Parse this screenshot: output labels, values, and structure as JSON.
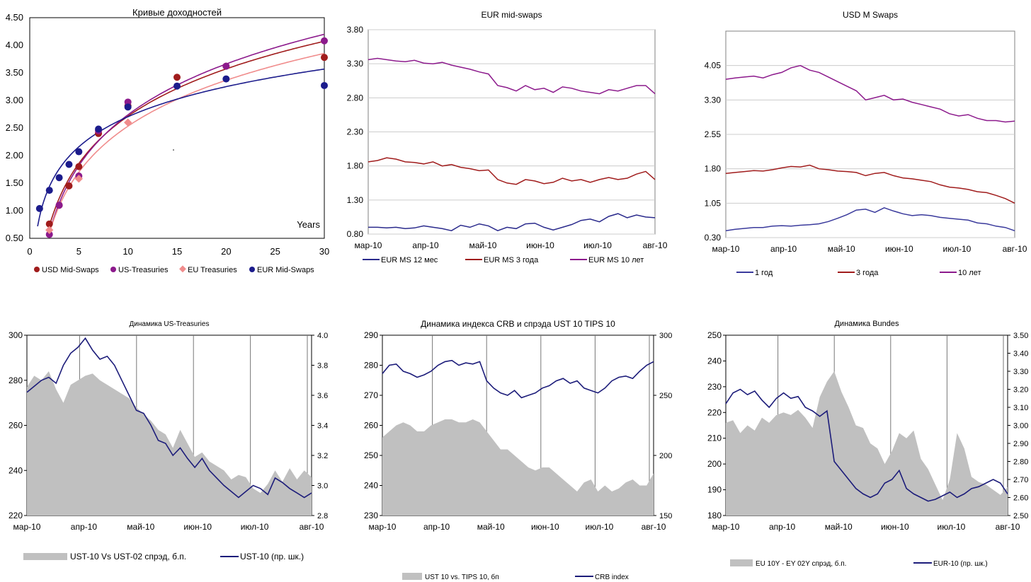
{
  "chart_data": [
    {
      "type": "scatter",
      "title": "Кривые доходностей",
      "xlabel": "Years",
      "xlim": [
        0,
        30
      ],
      "ylim": [
        0.5,
        4.5
      ],
      "xticks": [
        "0",
        "5",
        "10",
        "15",
        "20",
        "25",
        "30"
      ],
      "yticks": [
        "0.50",
        "1.00",
        "1.50",
        "2.00",
        "2.50",
        "3.00",
        "3.50",
        "4.00",
        "4.50"
      ],
      "series": [
        {
          "name": "USD Mid-Swaps",
          "color": "#a01c1c",
          "x": [
            2,
            3,
            4,
            5,
            7,
            10,
            15,
            20,
            30
          ],
          "y": [
            0.76,
            1.1,
            1.45,
            1.8,
            2.4,
            2.9,
            3.42,
            3.62,
            3.78
          ]
        },
        {
          "name": "US-Treasuries",
          "color": "#8c1a8c",
          "x": [
            2,
            3,
            5,
            7,
            10,
            20,
            30
          ],
          "y": [
            0.57,
            1.1,
            1.63,
            2.45,
            2.97,
            3.62,
            4.08
          ]
        },
        {
          "name": "EU Treasuries",
          "color": "#f08c8c",
          "x": [
            2,
            5,
            10
          ],
          "y": [
            0.65,
            1.58,
            2.6
          ]
        },
        {
          "name": "EUR Mid-Swaps",
          "color": "#1c1c8c",
          "x": [
            1,
            2,
            3,
            4,
            5,
            7,
            10,
            15,
            20,
            30
          ],
          "y": [
            1.04,
            1.37,
            1.6,
            1.84,
            2.07,
            2.48,
            2.88,
            3.26,
            3.39,
            3.27
          ]
        }
      ]
    },
    {
      "type": "line",
      "title": "EUR mid-swaps",
      "ylim": [
        0.8,
        3.8
      ],
      "yticks": [
        "0.80",
        "1.30",
        "1.80",
        "2.30",
        "2.80",
        "3.30",
        "3.80"
      ],
      "xticks": [
        "мар-10",
        "апр-10",
        "май-10",
        "июн-10",
        "июл-10",
        "авг-10"
      ],
      "series": [
        {
          "name": "EUR MS 12 мес",
          "color": "#2a2a8c",
          "values": [
            0.9,
            0.9,
            0.89,
            0.9,
            0.88,
            0.89,
            0.92,
            0.9,
            0.88,
            0.85,
            0.93,
            0.9,
            0.95,
            0.92,
            0.85,
            0.9,
            0.88,
            0.95,
            0.96,
            0.9,
            0.86,
            0.9,
            0.94,
            1.0,
            1.02,
            0.98,
            1.06,
            1.1,
            1.04,
            1.08,
            1.05,
            1.04
          ]
        },
        {
          "name": "EUR MS 3 года",
          "color": "#a01c1c",
          "values": [
            1.86,
            1.88,
            1.92,
            1.9,
            1.86,
            1.85,
            1.83,
            1.86,
            1.8,
            1.82,
            1.78,
            1.76,
            1.73,
            1.74,
            1.6,
            1.55,
            1.53,
            1.6,
            1.58,
            1.54,
            1.56,
            1.62,
            1.58,
            1.6,
            1.56,
            1.6,
            1.63,
            1.6,
            1.62,
            1.68,
            1.72,
            1.6
          ]
        },
        {
          "name": "EUR MS 10 лет",
          "color": "#8c1a8c",
          "values": [
            3.36,
            3.38,
            3.36,
            3.34,
            3.33,
            3.35,
            3.31,
            3.3,
            3.32,
            3.28,
            3.25,
            3.22,
            3.18,
            3.15,
            2.98,
            2.95,
            2.9,
            2.98,
            2.92,
            2.94,
            2.88,
            2.96,
            2.94,
            2.9,
            2.88,
            2.86,
            2.92,
            2.9,
            2.94,
            2.98,
            2.98,
            2.86
          ]
        }
      ]
    },
    {
      "type": "line",
      "title": "USD M Swaps",
      "ylim": [
        0.3,
        4.8
      ],
      "yticks": [
        "0.30",
        "1.05",
        "1.80",
        "2.55",
        "3.30",
        "4.05"
      ],
      "xticks": [
        "мар-10",
        "апр-10",
        "май-10",
        "июн-10",
        "июл-10",
        "авг-10"
      ],
      "series": [
        {
          "name": "1 год",
          "color": "#3a3a9c",
          "values": [
            0.45,
            0.48,
            0.5,
            0.52,
            0.52,
            0.55,
            0.56,
            0.55,
            0.57,
            0.58,
            0.6,
            0.65,
            0.72,
            0.8,
            0.9,
            0.92,
            0.85,
            0.95,
            0.88,
            0.82,
            0.78,
            0.8,
            0.78,
            0.74,
            0.72,
            0.7,
            0.68,
            0.62,
            0.6,
            0.55,
            0.52,
            0.45
          ]
        },
        {
          "name": "3 года",
          "color": "#a01c1c",
          "values": [
            1.7,
            1.72,
            1.74,
            1.76,
            1.75,
            1.78,
            1.82,
            1.85,
            1.84,
            1.88,
            1.8,
            1.78,
            1.75,
            1.74,
            1.72,
            1.65,
            1.7,
            1.72,
            1.65,
            1.6,
            1.58,
            1.55,
            1.52,
            1.45,
            1.4,
            1.38,
            1.35,
            1.3,
            1.28,
            1.22,
            1.15,
            1.05
          ]
        },
        {
          "name": "10 лет",
          "color": "#8c1a8c",
          "values": [
            3.75,
            3.78,
            3.8,
            3.82,
            3.78,
            3.85,
            3.9,
            4.0,
            4.05,
            3.95,
            3.9,
            3.8,
            3.7,
            3.6,
            3.5,
            3.3,
            3.35,
            3.4,
            3.3,
            3.32,
            3.25,
            3.2,
            3.15,
            3.1,
            3.0,
            2.95,
            2.98,
            2.9,
            2.85,
            2.85,
            2.82,
            2.84
          ]
        }
      ]
    },
    {
      "type": "area",
      "title": "Динамика US-Treasuries",
      "ylim": [
        220,
        300
      ],
      "yticks": [
        "220",
        "240",
        "260",
        "280",
        "300"
      ],
      "y2lim": [
        2.8,
        4.0
      ],
      "y2ticks": [
        "2.8",
        "3.0",
        "3.2",
        "3.4",
        "3.6",
        "3.8",
        "4.0"
      ],
      "xticks": [
        "мар-10",
        "апр-10",
        "май-10",
        "июн-10",
        "июл-10",
        "авг-10"
      ],
      "series": [
        {
          "name": "UST-10 Vs UST-02 спрэд, б.п.",
          "color": "#c0c0c0",
          "values": [
            277,
            282,
            280,
            284,
            276,
            270,
            278,
            280,
            282,
            283,
            280,
            278,
            276,
            274,
            272,
            268,
            265,
            262,
            258,
            256,
            250,
            258,
            252,
            246,
            248,
            244,
            242,
            240,
            236,
            238,
            237,
            232,
            230,
            234,
            240,
            235,
            241,
            236,
            240,
            237
          ]
        },
        {
          "name": "UST-10 (пр. шк.)",
          "color": "#1c1c7a",
          "values": [
            3.62,
            3.66,
            3.7,
            3.72,
            3.68,
            3.8,
            3.88,
            3.92,
            3.98,
            3.9,
            3.84,
            3.86,
            3.8,
            3.7,
            3.6,
            3.5,
            3.48,
            3.4,
            3.3,
            3.28,
            3.2,
            3.25,
            3.18,
            3.12,
            3.18,
            3.1,
            3.05,
            3.0,
            2.96,
            2.92,
            2.96,
            3.0,
            2.98,
            2.94,
            3.05,
            3.02,
            2.98,
            2.95,
            2.92,
            2.95
          ]
        }
      ]
    },
    {
      "type": "area",
      "title": "Динамика индекса CRB и спрэда UST 10 TIPS 10",
      "ylim": [
        230,
        290
      ],
      "yticks": [
        "230",
        "240",
        "250",
        "260",
        "270",
        "280",
        "290"
      ],
      "y2lim": [
        150,
        300
      ],
      "y2ticks": [
        "150",
        "200",
        "250",
        "300"
      ],
      "xticks": [
        "мар-10",
        "апр-10",
        "май-10",
        "июн-10",
        "июл-10",
        "авг-10"
      ],
      "series": [
        {
          "name": "UST 10 vs. TIPS 10, бп",
          "color": "#c0c0c0",
          "values": [
            256,
            258,
            260,
            261,
            260,
            258,
            258,
            260,
            261,
            262,
            262,
            261,
            261,
            262,
            261,
            258,
            255,
            252,
            252,
            250,
            248,
            246,
            245,
            246,
            246,
            244,
            242,
            240,
            238,
            241,
            242,
            238,
            240,
            238,
            239,
            241,
            242,
            240,
            240,
            244
          ]
        },
        {
          "name": "CRB index",
          "color": "#1c1c7a",
          "values": [
            268,
            275,
            276,
            270,
            268,
            265,
            267,
            270,
            275,
            278,
            279,
            275,
            277,
            276,
            278,
            262,
            256,
            252,
            250,
            254,
            248,
            250,
            252,
            256,
            258,
            262,
            264,
            260,
            262,
            256,
            254,
            252,
            256,
            262,
            265,
            266,
            264,
            270,
            275,
            278
          ]
        }
      ]
    },
    {
      "type": "area",
      "title": "Динамика Bundes",
      "ylim": [
        180,
        250
      ],
      "yticks": [
        "180",
        "190",
        "200",
        "210",
        "220",
        "230",
        "240",
        "250"
      ],
      "y2lim": [
        2.5,
        3.5
      ],
      "y2ticks": [
        "2.50",
        "2.60",
        "2.70",
        "2.80",
        "2.90",
        "3.00",
        "3.10",
        "3.20",
        "3.30",
        "3.40",
        "3.50"
      ],
      "xticks": [
        "мар-10",
        "апр-10",
        "май-10",
        "июн-10",
        "июл-10",
        "авг-10"
      ],
      "series": [
        {
          "name": "EU 10Y - EY 02Y спрэд, б.п.",
          "color": "#c0c0c0",
          "values": [
            216,
            217,
            212,
            215,
            213,
            218,
            216,
            219,
            220,
            219,
            221,
            218,
            214,
            226,
            232,
            236,
            228,
            222,
            215,
            214,
            208,
            206,
            200,
            205,
            212,
            210,
            213,
            202,
            198,
            192,
            186,
            194,
            212,
            206,
            195,
            193,
            192,
            190,
            188,
            191
          ]
        },
        {
          "name": "EUR-10 (пр. шк.)",
          "color": "#1c1c7a",
          "values": [
            3.12,
            3.18,
            3.2,
            3.17,
            3.19,
            3.14,
            3.1,
            3.15,
            3.18,
            3.15,
            3.16,
            3.1,
            3.08,
            3.05,
            3.08,
            2.8,
            2.75,
            2.7,
            2.65,
            2.62,
            2.6,
            2.62,
            2.68,
            2.7,
            2.75,
            2.65,
            2.62,
            2.6,
            2.58,
            2.59,
            2.61,
            2.63,
            2.6,
            2.62,
            2.65,
            2.66,
            2.68,
            2.7,
            2.68,
            2.62
          ]
        }
      ]
    }
  ]
}
